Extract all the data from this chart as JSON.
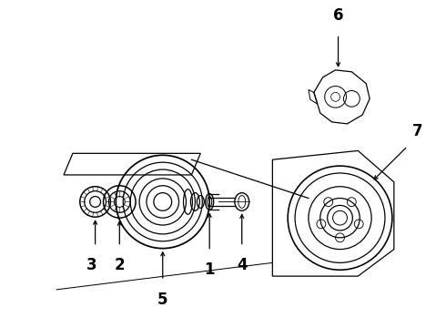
{
  "background_color": "#ffffff",
  "fig_width": 4.9,
  "fig_height": 3.6,
  "dpi": 100,
  "line_color": "#000000",
  "lw": 0.9
}
